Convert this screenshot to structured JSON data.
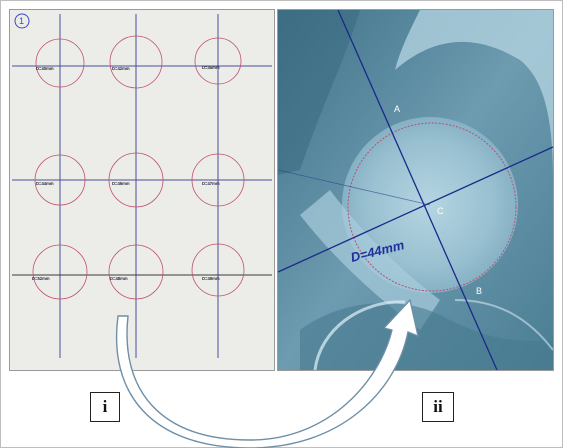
{
  "panel_labels": {
    "left": "i",
    "right": "ii"
  },
  "sheet": {
    "page_number": "1",
    "template_labels": [
      "D=40mm",
      "D=42mm",
      "D=45mm",
      "D=44mm",
      "D=46mm",
      "D=47mm",
      "D=52mm",
      "D=48mm",
      "D=49mm"
    ]
  },
  "xray": {
    "diameter_label": "D=44mm",
    "points": {
      "a": "A",
      "b": "B",
      "c": "C"
    }
  },
  "colors": {
    "sheet": "#ececea",
    "xray_blue": "#5f8ea2",
    "circle_red": "#c0506e",
    "guide_line": "#3a3f8f",
    "arrow_fill": "#ffffff",
    "arrow_stroke": "#6f8fa6"
  }
}
